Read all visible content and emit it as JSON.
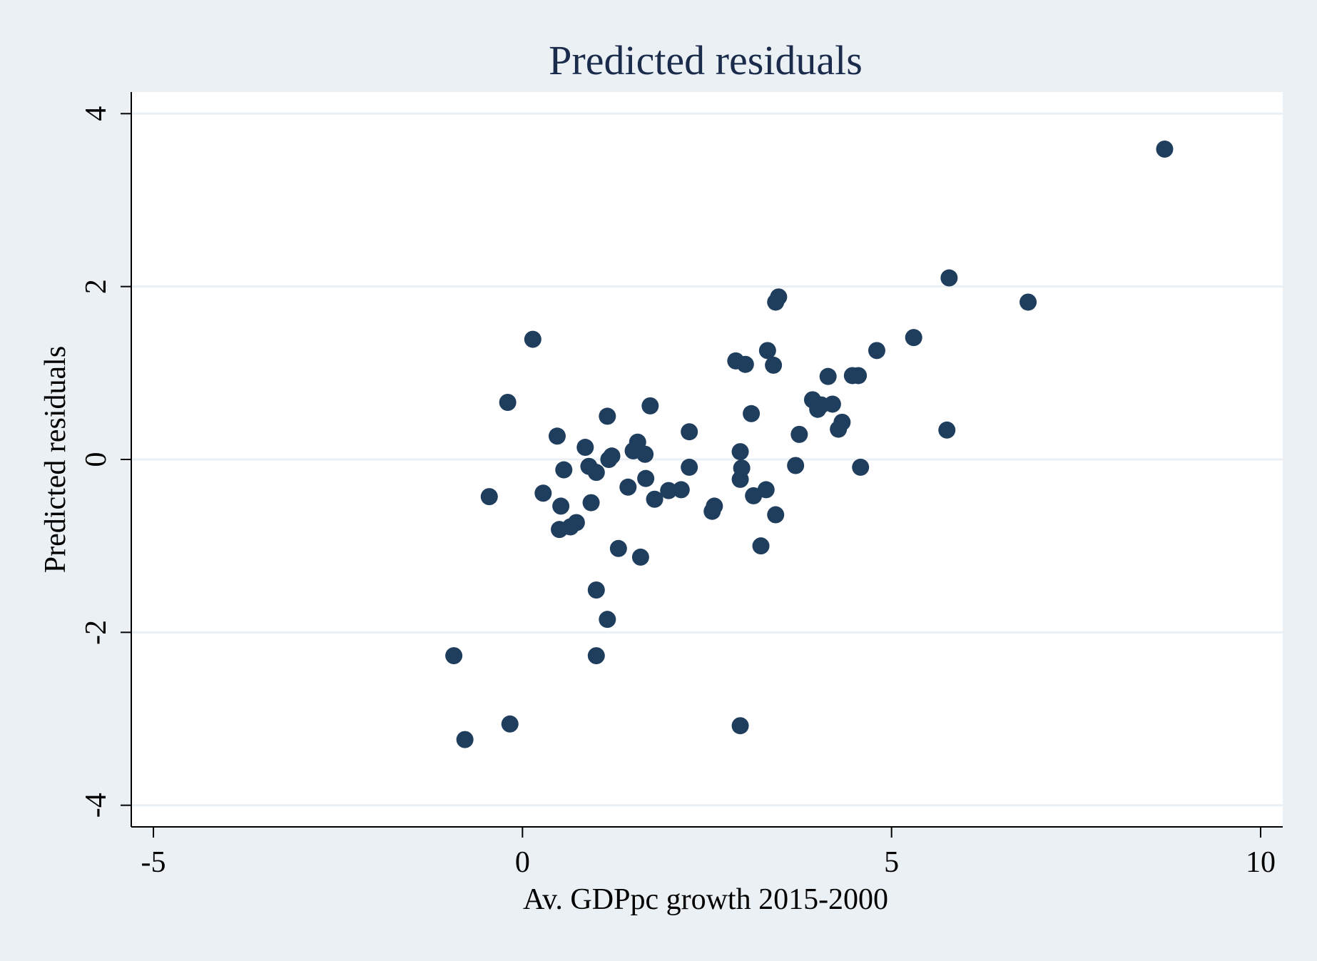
{
  "colors": {
    "background": "#eaf0f3",
    "plot_area": "#ffffff",
    "marker": "#1f3d5c",
    "grid": "#eaf0f3",
    "axis": "#000000",
    "title": "#1a2b4c"
  },
  "chart_data": {
    "type": "scatter",
    "title": "Predicted residuals",
    "xlabel": "Av. GDPpc growth 2015-2000",
    "ylabel": "Predicted residuals",
    "xlim": [
      -5.3,
      10.3
    ],
    "ylim": [
      -4.25,
      4.25
    ],
    "xticks": [
      -5,
      0,
      5,
      10
    ],
    "xtick_labels": [
      "-5",
      "0",
      "5",
      "10"
    ],
    "yticks": [
      -4,
      -2,
      0,
      2,
      4
    ],
    "ytick_labels": [
      "-4",
      "-2",
      "0",
      "2",
      "4"
    ],
    "grid": true,
    "legend": "none",
    "series": [
      {
        "points": [
          [
            -0.93,
            -2.27
          ],
          [
            -0.78,
            -3.24
          ],
          [
            -0.45,
            -0.43
          ],
          [
            -0.2,
            0.66
          ],
          [
            -0.17,
            -3.06
          ],
          [
            0.14,
            1.39
          ],
          [
            0.28,
            -0.39
          ],
          [
            0.47,
            0.27
          ],
          [
            0.5,
            -0.81
          ],
          [
            0.52,
            -0.54
          ],
          [
            0.56,
            -0.12
          ],
          [
            0.65,
            -0.78
          ],
          [
            0.73,
            -0.73
          ],
          [
            0.85,
            0.14
          ],
          [
            0.9,
            -0.08
          ],
          [
            0.93,
            -0.5
          ],
          [
            1.0,
            -0.15
          ],
          [
            1.0,
            -1.51
          ],
          [
            1.0,
            -2.27
          ],
          [
            1.15,
            0.5
          ],
          [
            1.17,
            0.0
          ],
          [
            1.21,
            0.04
          ],
          [
            1.15,
            -1.85
          ],
          [
            1.3,
            -1.03
          ],
          [
            1.43,
            -0.32
          ],
          [
            1.5,
            0.1
          ],
          [
            1.56,
            0.2
          ],
          [
            1.6,
            -1.13
          ],
          [
            1.66,
            0.06
          ],
          [
            1.67,
            -0.22
          ],
          [
            1.73,
            0.62
          ],
          [
            1.79,
            -0.46
          ],
          [
            1.98,
            -0.36
          ],
          [
            2.15,
            -0.35
          ],
          [
            2.26,
            0.32
          ],
          [
            2.26,
            -0.09
          ],
          [
            2.57,
            -0.6
          ],
          [
            2.6,
            -0.54
          ],
          [
            2.89,
            1.14
          ],
          [
            2.95,
            0.09
          ],
          [
            2.95,
            -0.23
          ],
          [
            2.97,
            -0.1
          ],
          [
            3.02,
            1.1
          ],
          [
            3.1,
            0.53
          ],
          [
            3.13,
            -0.42
          ],
          [
            3.23,
            -1.0
          ],
          [
            3.3,
            -0.35
          ],
          [
            3.32,
            1.26
          ],
          [
            3.4,
            1.09
          ],
          [
            3.43,
            -0.64
          ],
          [
            3.43,
            1.82
          ],
          [
            3.47,
            1.88
          ],
          [
            3.7,
            -0.07
          ],
          [
            3.75,
            0.29
          ],
          [
            3.93,
            0.69
          ],
          [
            4.0,
            0.58
          ],
          [
            4.05,
            0.63
          ],
          [
            4.14,
            0.96
          ],
          [
            4.2,
            0.64
          ],
          [
            4.28,
            0.35
          ],
          [
            4.33,
            0.43
          ],
          [
            4.47,
            0.97
          ],
          [
            4.55,
            0.97
          ],
          [
            4.58,
            -0.09
          ],
          [
            4.8,
            1.26
          ],
          [
            5.3,
            1.41
          ],
          [
            5.75,
            0.34
          ],
          [
            5.78,
            2.1
          ],
          [
            6.85,
            1.82
          ],
          [
            8.7,
            3.59
          ],
          [
            2.95,
            -3.08
          ]
        ]
      }
    ]
  }
}
